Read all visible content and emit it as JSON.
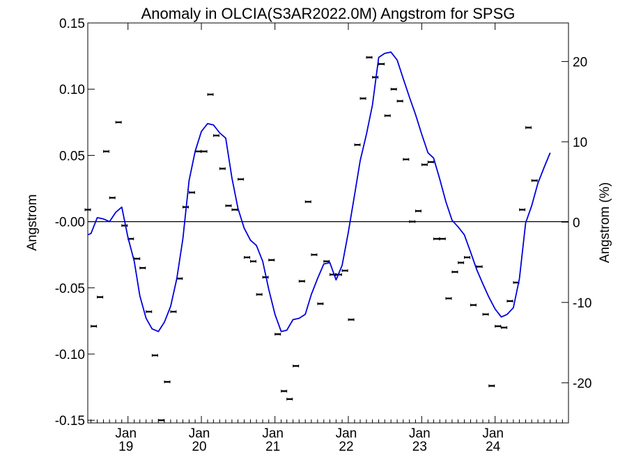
{
  "chart_data": {
    "type": "line",
    "title": "Anomaly in OLCIA(S3AR2022.0M) Angstrom for SPSG",
    "ylabel": "Angstrom",
    "y2label": "Angstrom (%)",
    "ylim": [
      -0.152,
      0.15
    ],
    "y_ticks": [
      "0.15",
      "0.10",
      "0.05",
      "-0.00",
      "-0.05",
      "-0.10",
      "-0.15"
    ],
    "y_tick_values": [
      0.15,
      0.1,
      0.05,
      0.0,
      -0.05,
      -0.1,
      -0.15
    ],
    "y2lim": [
      -25.0,
      24.8
    ],
    "y2_ticks": [
      "20",
      "10",
      "0",
      "-10",
      "-20"
    ],
    "y2_tick_values": [
      20,
      10,
      0,
      -10,
      -20
    ],
    "xlim": [
      "2018-06-15",
      "2024-12-31"
    ],
    "x_ticks": [
      {
        "date": "2019-01-01",
        "month": "Jan",
        "year": "19"
      },
      {
        "date": "2020-01-01",
        "month": "Jan",
        "year": "20"
      },
      {
        "date": "2021-01-01",
        "month": "Jan",
        "year": "21"
      },
      {
        "date": "2022-01-01",
        "month": "Jan",
        "year": "22"
      },
      {
        "date": "2023-01-01",
        "month": "Jan",
        "year": "23"
      },
      {
        "date": "2024-01-01",
        "month": "Jan",
        "year": "24"
      }
    ],
    "zero_line": true,
    "grid": false,
    "series": [
      {
        "kind": "points",
        "color": "#000000",
        "points": [
          [
            "2018-06-15",
            0.009
          ],
          [
            "2018-07-15",
            -0.079
          ],
          [
            "2018-08-15",
            -0.057
          ],
          [
            "2018-09-15",
            0.053
          ],
          [
            "2018-10-15",
            0.018
          ],
          [
            "2018-11-15",
            0.075
          ],
          [
            "2018-12-15",
            -0.003
          ],
          [
            "2019-01-15",
            -0.013
          ],
          [
            "2019-02-15",
            -0.028
          ],
          [
            "2019-03-15",
            -0.035
          ],
          [
            "2019-04-15",
            -0.068
          ],
          [
            "2019-05-15",
            -0.101
          ],
          [
            "2019-06-15",
            -0.15
          ],
          [
            "2019-07-15",
            -0.121
          ],
          [
            "2019-08-15",
            -0.068
          ],
          [
            "2019-09-15",
            -0.043
          ],
          [
            "2019-10-15",
            0.011
          ],
          [
            "2019-11-15",
            0.022
          ],
          [
            "2019-12-15",
            0.053
          ],
          [
            "2020-01-15",
            0.053
          ],
          [
            "2020-02-15",
            0.096
          ],
          [
            "2020-03-15",
            0.065
          ],
          [
            "2020-04-15",
            0.04
          ],
          [
            "2020-05-15",
            0.012
          ],
          [
            "2020-06-15",
            0.009
          ],
          [
            "2020-07-15",
            0.032
          ],
          [
            "2020-08-15",
            -0.027
          ],
          [
            "2020-09-15",
            -0.03
          ],
          [
            "2020-10-15",
            -0.055
          ],
          [
            "2020-11-15",
            -0.042
          ],
          [
            "2020-12-15",
            -0.029
          ],
          [
            "2021-01-15",
            -0.085
          ],
          [
            "2021-02-15",
            -0.128
          ],
          [
            "2021-03-15",
            -0.134
          ],
          [
            "2021-04-15",
            -0.109
          ],
          [
            "2021-05-15",
            -0.045
          ],
          [
            "2021-06-15",
            0.015
          ],
          [
            "2021-07-15",
            -0.025
          ],
          [
            "2021-08-15",
            -0.062
          ],
          [
            "2021-09-15",
            -0.03
          ],
          [
            "2021-10-15",
            -0.04
          ],
          [
            "2021-11-15",
            -0.04
          ],
          [
            "2021-12-15",
            -0.037
          ],
          [
            "2022-01-15",
            -0.074
          ],
          [
            "2022-02-15",
            0.058
          ],
          [
            "2022-03-15",
            0.093
          ],
          [
            "2022-04-15",
            0.124
          ],
          [
            "2022-05-15",
            0.109
          ],
          [
            "2022-06-15",
            0.119
          ],
          [
            "2022-07-15",
            0.08
          ],
          [
            "2022-08-15",
            0.1
          ],
          [
            "2022-09-15",
            0.091
          ],
          [
            "2022-10-15",
            0.047
          ],
          [
            "2022-11-15",
            0.0
          ],
          [
            "2022-12-15",
            0.008
          ],
          [
            "2023-01-15",
            0.043
          ],
          [
            "2023-02-15",
            0.045
          ],
          [
            "2023-03-15",
            -0.013
          ],
          [
            "2023-04-15",
            -0.013
          ],
          [
            "2023-05-15",
            -0.058
          ],
          [
            "2023-06-15",
            -0.038
          ],
          [
            "2023-07-15",
            -0.031
          ],
          [
            "2023-08-15",
            -0.027
          ],
          [
            "2023-09-15",
            -0.063
          ],
          [
            "2023-10-15",
            -0.034
          ],
          [
            "2023-11-15",
            -0.07
          ],
          [
            "2023-12-15",
            -0.124
          ],
          [
            "2024-01-15",
            -0.079
          ],
          [
            "2024-02-15",
            -0.08
          ],
          [
            "2024-03-15",
            -0.06
          ],
          [
            "2024-04-15",
            -0.046
          ],
          [
            "2024-05-15",
            0.009
          ],
          [
            "2024-06-15",
            0.071
          ],
          [
            "2024-07-15",
            0.031
          ]
        ]
      },
      {
        "kind": "line",
        "color": "#0000dd",
        "points": [
          [
            "2018-06-15",
            -0.01
          ],
          [
            "2018-07-01",
            -0.009
          ],
          [
            "2018-08-01",
            0.003
          ],
          [
            "2018-09-01",
            0.002
          ],
          [
            "2018-10-01",
            0.0
          ],
          [
            "2018-11-01",
            0.007
          ],
          [
            "2018-12-01",
            0.011
          ],
          [
            "2019-01-01",
            -0.012
          ],
          [
            "2019-02-01",
            -0.03
          ],
          [
            "2019-03-01",
            -0.056
          ],
          [
            "2019-04-01",
            -0.073
          ],
          [
            "2019-05-01",
            -0.081
          ],
          [
            "2019-06-01",
            -0.083
          ],
          [
            "2019-07-01",
            -0.076
          ],
          [
            "2019-08-01",
            -0.064
          ],
          [
            "2019-09-01",
            -0.043
          ],
          [
            "2019-10-01",
            -0.013
          ],
          [
            "2019-11-01",
            0.031
          ],
          [
            "2019-12-01",
            0.053
          ],
          [
            "2020-01-01",
            0.068
          ],
          [
            "2020-02-01",
            0.074
          ],
          [
            "2020-03-01",
            0.073
          ],
          [
            "2020-04-01",
            0.067
          ],
          [
            "2020-05-01",
            0.063
          ],
          [
            "2020-06-01",
            0.033
          ],
          [
            "2020-07-01",
            0.01
          ],
          [
            "2020-08-01",
            -0.005
          ],
          [
            "2020-09-01",
            -0.014
          ],
          [
            "2020-10-01",
            -0.018
          ],
          [
            "2020-11-01",
            -0.03
          ],
          [
            "2020-12-01",
            -0.051
          ],
          [
            "2021-01-01",
            -0.07
          ],
          [
            "2021-02-01",
            -0.083
          ],
          [
            "2021-03-01",
            -0.082
          ],
          [
            "2021-04-01",
            -0.074
          ],
          [
            "2021-05-01",
            -0.073
          ],
          [
            "2021-06-01",
            -0.07
          ],
          [
            "2021-07-01",
            -0.055
          ],
          [
            "2021-08-01",
            -0.043
          ],
          [
            "2021-09-01",
            -0.032
          ],
          [
            "2021-10-01",
            -0.031
          ],
          [
            "2021-11-01",
            -0.044
          ],
          [
            "2021-12-01",
            -0.033
          ],
          [
            "2022-01-01",
            -0.008
          ],
          [
            "2022-02-01",
            0.02
          ],
          [
            "2022-03-01",
            0.046
          ],
          [
            "2022-04-01",
            0.066
          ],
          [
            "2022-05-01",
            0.088
          ],
          [
            "2022-06-01",
            0.124
          ],
          [
            "2022-07-01",
            0.127
          ],
          [
            "2022-08-01",
            0.128
          ],
          [
            "2022-09-01",
            0.122
          ],
          [
            "2022-10-01",
            0.108
          ],
          [
            "2022-11-01",
            0.094
          ],
          [
            "2022-12-01",
            0.081
          ],
          [
            "2023-01-01",
            0.066
          ],
          [
            "2023-02-01",
            0.052
          ],
          [
            "2023-03-01",
            0.048
          ],
          [
            "2023-04-01",
            0.032
          ],
          [
            "2023-05-01",
            0.015
          ],
          [
            "2023-06-01",
            0.001
          ],
          [
            "2023-07-01",
            -0.004
          ],
          [
            "2023-08-01",
            -0.01
          ],
          [
            "2023-09-01",
            -0.023
          ],
          [
            "2023-10-01",
            -0.036
          ],
          [
            "2023-11-01",
            -0.047
          ],
          [
            "2023-12-01",
            -0.057
          ],
          [
            "2024-01-01",
            -0.066
          ],
          [
            "2024-02-01",
            -0.072
          ],
          [
            "2024-03-01",
            -0.07
          ],
          [
            "2024-04-01",
            -0.065
          ],
          [
            "2024-05-01",
            -0.043
          ],
          [
            "2024-06-01",
            -0.001
          ],
          [
            "2024-07-01",
            0.012
          ],
          [
            "2024-08-01",
            0.029
          ],
          [
            "2024-09-01",
            0.041
          ],
          [
            "2024-10-01",
            0.052
          ]
        ]
      }
    ]
  }
}
